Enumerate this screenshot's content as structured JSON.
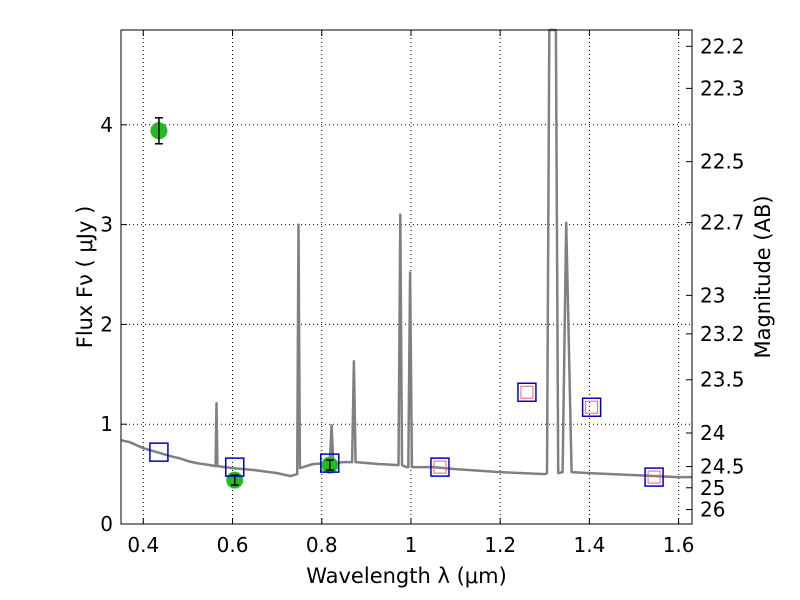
{
  "chart_data": {
    "type": "scatter",
    "xlabel": "Wavelength  λ (μm)",
    "ylabel": "Flux  Fν  ( μJy )",
    "y2label": "Magnitude (AB)",
    "xlim": [
      0.35,
      1.63
    ],
    "ylim": [
      0,
      4.95
    ],
    "grid": true,
    "x_ticks": [
      {
        "value": 0.4,
        "label": "0.4"
      },
      {
        "value": 0.6,
        "label": "0.6"
      },
      {
        "value": 0.8,
        "label": "0.8"
      },
      {
        "value": 1.0,
        "label": "1"
      },
      {
        "value": 1.2,
        "label": "1.2"
      },
      {
        "value": 1.4,
        "label": "1.4"
      },
      {
        "value": 1.6,
        "label": "1.6"
      }
    ],
    "y_ticks": [
      {
        "value": 0,
        "label": "0"
      },
      {
        "value": 1,
        "label": "1"
      },
      {
        "value": 2,
        "label": "2"
      },
      {
        "value": 3,
        "label": "3"
      },
      {
        "value": 4,
        "label": "4"
      }
    ],
    "y2_ticks": [
      {
        "mag": 22.2,
        "label": "22.2"
      },
      {
        "mag": 22.3,
        "label": "22.3"
      },
      {
        "mag": 22.5,
        "label": "22.5"
      },
      {
        "mag": 22.7,
        "label": "22.7"
      },
      {
        "mag": 23,
        "label": "23"
      },
      {
        "mag": 23.2,
        "label": "23.2"
      },
      {
        "mag": 23.5,
        "label": "23.5"
      },
      {
        "mag": 24,
        "label": "24"
      },
      {
        "mag": 24.5,
        "label": "24.5"
      },
      {
        "mag": 25,
        "label": "25"
      },
      {
        "mag": 26,
        "label": "26"
      }
    ],
    "series": [
      {
        "kind": "line",
        "color": "#808080",
        "points": [
          [
            0.35,
            0.84
          ],
          [
            0.37,
            0.82
          ],
          [
            0.4,
            0.76
          ],
          [
            0.43,
            0.72
          ],
          [
            0.46,
            0.68
          ],
          [
            0.48,
            0.66
          ],
          [
            0.5,
            0.63
          ],
          [
            0.52,
            0.61
          ],
          [
            0.55,
            0.59
          ],
          [
            0.562,
            0.58
          ],
          [
            0.564,
            1.21
          ],
          [
            0.566,
            0.58
          ],
          [
            0.6,
            0.56
          ],
          [
            0.65,
            0.54
          ],
          [
            0.7,
            0.51
          ],
          [
            0.73,
            0.48
          ],
          [
            0.745,
            0.5
          ],
          [
            0.748,
            3.0
          ],
          [
            0.751,
            0.56
          ],
          [
            0.78,
            0.6
          ],
          [
            0.81,
            0.61
          ],
          [
            0.818,
            0.61
          ],
          [
            0.822,
            0.99
          ],
          [
            0.826,
            0.61
          ],
          [
            0.85,
            0.62
          ],
          [
            0.868,
            0.62
          ],
          [
            0.872,
            1.63
          ],
          [
            0.876,
            0.62
          ],
          [
            0.93,
            0.6
          ],
          [
            0.972,
            0.59
          ],
          [
            0.976,
            3.1
          ],
          [
            0.98,
            0.59
          ],
          [
            0.99,
            0.57
          ],
          [
            0.994,
            0.57
          ],
          [
            0.998,
            2.52
          ],
          [
            1.002,
            0.57
          ],
          [
            1.05,
            0.57
          ],
          [
            1.1,
            0.55
          ],
          [
            1.2,
            0.52
          ],
          [
            1.25,
            0.51
          ],
          [
            1.3,
            0.5
          ],
          [
            1.305,
            0.51
          ],
          [
            1.31,
            4.95
          ],
          [
            1.325,
            4.95
          ],
          [
            1.33,
            0.51
          ],
          [
            1.34,
            0.52
          ],
          [
            1.348,
            3.02
          ],
          [
            1.36,
            0.52
          ],
          [
            1.4,
            0.51
          ],
          [
            1.45,
            0.5
          ],
          [
            1.5,
            0.49
          ],
          [
            1.55,
            0.48
          ],
          [
            1.6,
            0.47
          ],
          [
            1.63,
            0.47
          ]
        ]
      },
      {
        "kind": "points",
        "marker": "circle",
        "color": "#22bb22",
        "points": [
          {
            "x": 0.435,
            "y": 3.94,
            "err": 0.13
          },
          {
            "x": 0.605,
            "y": 0.44,
            "err": 0.05
          },
          {
            "x": 0.818,
            "y": 0.59,
            "err": 0.05
          }
        ]
      },
      {
        "kind": "points",
        "marker": "square-open",
        "color": "#0000cc",
        "points": [
          {
            "x": 0.435,
            "y": 0.72
          },
          {
            "x": 0.605,
            "y": 0.57
          },
          {
            "x": 0.818,
            "y": 0.61
          },
          {
            "x": 1.065,
            "y": 0.57
          },
          {
            "x": 1.26,
            "y": 1.32
          },
          {
            "x": 1.405,
            "y": 1.17
          },
          {
            "x": 1.545,
            "y": 0.47
          }
        ]
      },
      {
        "kind": "points",
        "marker": "square-open-small",
        "color": "#ee6666",
        "points": [
          {
            "x": 1.065,
            "y": 0.57
          },
          {
            "x": 1.26,
            "y": 1.32
          },
          {
            "x": 1.405,
            "y": 1.17
          },
          {
            "x": 1.545,
            "y": 0.47
          }
        ]
      }
    ]
  }
}
